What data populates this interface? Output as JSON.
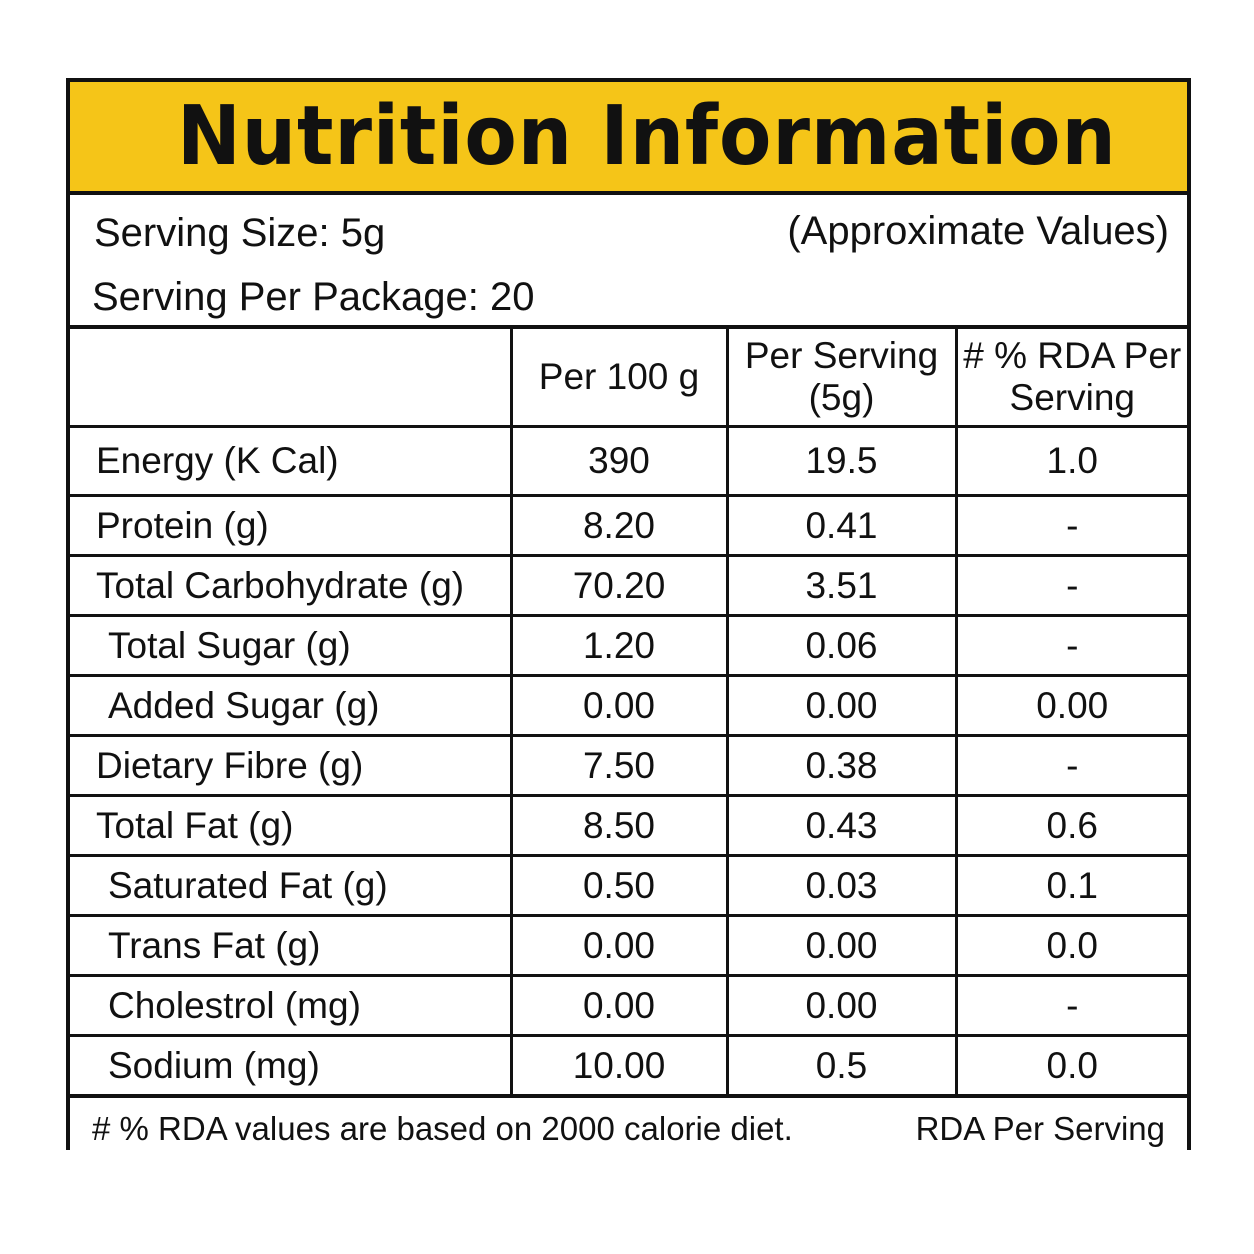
{
  "title": "Nutrition Information",
  "serving_size": "Serving Size: 5g",
  "serving_per_package": "Serving Per Package: 20",
  "approx_note": "(Approximate Values)",
  "headers": {
    "nutrient": "",
    "per_100g": "Per 100 g",
    "per_serving": "Per Serving (5g)",
    "rda": "# % RDA Per Serving"
  },
  "rows": [
    {
      "name": "Energy (K Cal)",
      "per_100g": "390",
      "per_serving": "19.5",
      "rda": "1.0"
    },
    {
      "name": "Protein (g)",
      "per_100g": "8.20",
      "per_serving": "0.41",
      "rda": "-"
    },
    {
      "name": "Total Carbohydrate (g)",
      "per_100g": "70.20",
      "per_serving": "3.51",
      "rda": "-"
    },
    {
      "name": "Total Sugar (g)",
      "per_100g": "1.20",
      "per_serving": "0.06",
      "rda": "-"
    },
    {
      "name": "Added Sugar (g)",
      "per_100g": "0.00",
      "per_serving": "0.00",
      "rda": "0.00"
    },
    {
      "name": "Dietary Fibre (g)",
      "per_100g": "7.50",
      "per_serving": "0.38",
      "rda": "-"
    },
    {
      "name": "Total Fat (g)",
      "per_100g": "8.50",
      "per_serving": "0.43",
      "rda": "0.6"
    },
    {
      "name": "Saturated Fat (g)",
      "per_100g": "0.50",
      "per_serving": "0.03",
      "rda": "0.1"
    },
    {
      "name": "Trans Fat (g)",
      "per_100g": "0.00",
      "per_serving": "0.00",
      "rda": "0.0"
    },
    {
      "name": "Cholestrol (mg)",
      "per_100g": "0.00",
      "per_serving": "0.00",
      "rda": "-"
    },
    {
      "name": "Sodium (mg)",
      "per_100g": "10.00",
      "per_serving": "0.5",
      "rda": "0.0"
    }
  ],
  "footnote_left": "# % RDA values are based on 2000 calorie diet.",
  "footnote_right": "RDA Per Serving",
  "colors": {
    "title_bg": "#f5c518",
    "border": "#111111"
  }
}
